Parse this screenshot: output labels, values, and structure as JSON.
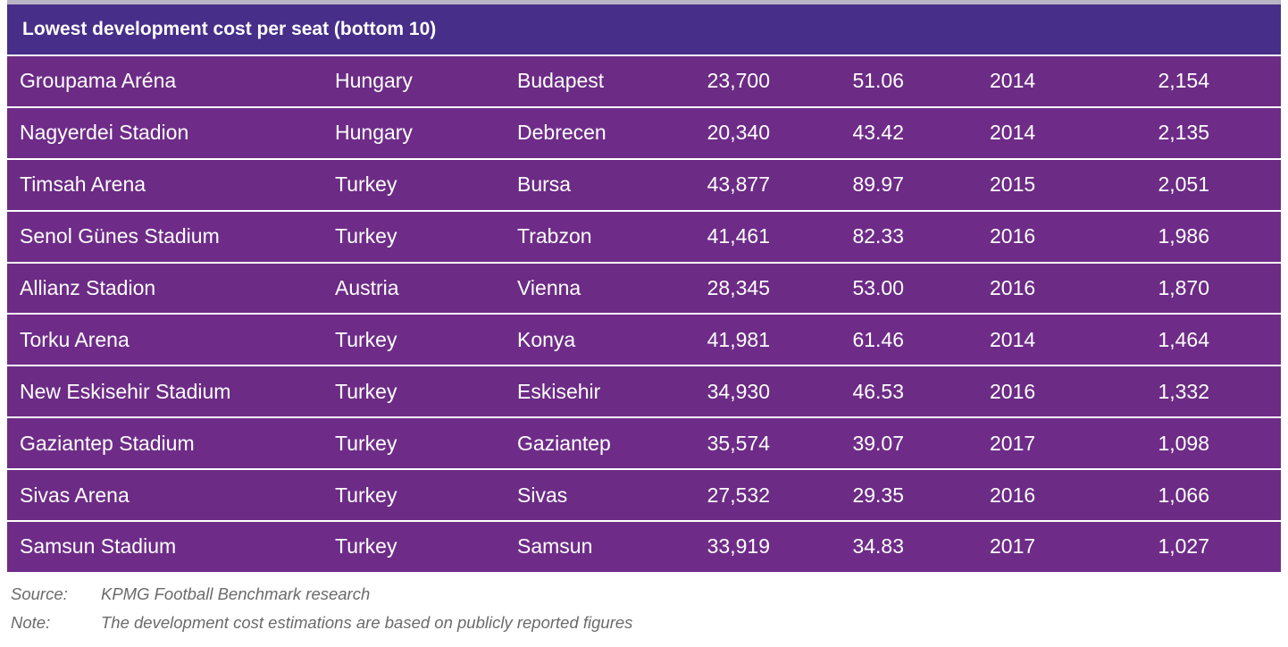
{
  "table": {
    "title": "Lowest development cost per seat (bottom 10)",
    "rows": [
      {
        "stadium": "Groupama Aréna",
        "country": "Hungary",
        "city": "Budapest",
        "capacity": "23,700",
        "cost": "51.06",
        "year": "2014",
        "cost_per_seat": "2,154"
      },
      {
        "stadium": "Nagyerdei Stadion",
        "country": "Hungary",
        "city": "Debrecen",
        "capacity": "20,340",
        "cost": "43.42",
        "year": "2014",
        "cost_per_seat": "2,135"
      },
      {
        "stadium": "Timsah Arena",
        "country": "Turkey",
        "city": "Bursa",
        "capacity": "43,877",
        "cost": "89.97",
        "year": "2015",
        "cost_per_seat": "2,051"
      },
      {
        "stadium": "Senol Günes Stadium",
        "country": "Turkey",
        "city": "Trabzon",
        "capacity": "41,461",
        "cost": "82.33",
        "year": "2016",
        "cost_per_seat": "1,986"
      },
      {
        "stadium": "Allianz Stadion",
        "country": "Austria",
        "city": "Vienna",
        "capacity": "28,345",
        "cost": "53.00",
        "year": "2016",
        "cost_per_seat": "1,870"
      },
      {
        "stadium": "Torku Arena",
        "country": "Turkey",
        "city": "Konya",
        "capacity": "41,981",
        "cost": "61.46",
        "year": "2014",
        "cost_per_seat": "1,464"
      },
      {
        "stadium": "New Eskisehir Stadium",
        "country": "Turkey",
        "city": "Eskisehir",
        "capacity": "34,930",
        "cost": "46.53",
        "year": "2016",
        "cost_per_seat": "1,332"
      },
      {
        "stadium": "Gaziantep Stadium",
        "country": "Turkey",
        "city": "Gaziantep",
        "capacity": "35,574",
        "cost": "39.07",
        "year": "2017",
        "cost_per_seat": "1,098"
      },
      {
        "stadium": "Sivas Arena",
        "country": "Turkey",
        "city": "Sivas",
        "capacity": "27,532",
        "cost": "29.35",
        "year": "2016",
        "cost_per_seat": "1,066"
      },
      {
        "stadium": "Samsun Stadium",
        "country": "Turkey",
        "city": "Samsun",
        "capacity": "33,919",
        "cost": "34.83",
        "year": "2017",
        "cost_per_seat": "1,027"
      }
    ]
  },
  "footnotes": {
    "source_label": "Source:",
    "source_text": "KPMG Football Benchmark research",
    "note_label": "Note:",
    "note_text": "The development cost estimations are based on publicly reported figures"
  },
  "colors": {
    "title_background": "#472e89",
    "row_background": "#6c2b85",
    "text": "#ffffff",
    "footnote_text": "#6a6a6a"
  }
}
